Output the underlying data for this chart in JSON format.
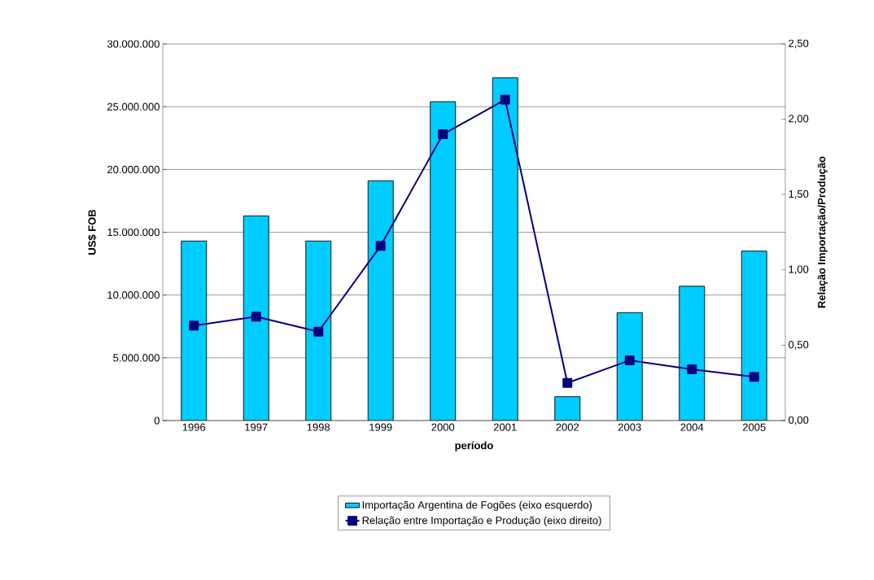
{
  "chart_data": {
    "type": "bar",
    "xlabel": "período",
    "ylabel": "US$ FOB",
    "y2label": "Relação Importação/Produção",
    "categories": [
      "1996",
      "1997",
      "1998",
      "1999",
      "2000",
      "2001",
      "2002",
      "2003",
      "2004",
      "2005"
    ],
    "series": [
      {
        "name": "Importação Argentina de Fogões (eixo esquerdo)",
        "color": "#00ccff",
        "values": [
          14300000,
          16300000,
          14300000,
          19100000,
          25400000,
          27300000,
          1900000,
          8600000,
          10700000,
          13500000
        ]
      },
      {
        "name": "Relação entre Importação e Produção (eixo direito)",
        "type": "line",
        "axis": "y2",
        "color": "#000080",
        "values": [
          0.63,
          0.69,
          0.59,
          1.16,
          1.9,
          2.13,
          0.25,
          0.4,
          0.34,
          0.29
        ]
      }
    ],
    "ylim": [
      0,
      30000000
    ],
    "yticks": [
      {
        "value": 0,
        "label": "0"
      },
      {
        "value": 5000000,
        "label": "5.000.000"
      },
      {
        "value": 10000000,
        "label": "10.000.000"
      },
      {
        "value": 15000000,
        "label": "15.000.000"
      },
      {
        "value": 20000000,
        "label": "20.000.000"
      },
      {
        "value": 25000000,
        "label": "25.000.000"
      },
      {
        "value": 30000000,
        "label": "30.000.000"
      }
    ],
    "y2lim": [
      0,
      2.5
    ],
    "y2ticks": [
      {
        "value": 0,
        "label": "0,00"
      },
      {
        "value": 0.5,
        "label": "0,50"
      },
      {
        "value": 1.0,
        "label": "1,00"
      },
      {
        "value": 1.5,
        "label": "1,50"
      },
      {
        "value": 2.0,
        "label": "2,00"
      },
      {
        "value": 2.5,
        "label": "2,50"
      }
    ],
    "grid": "y",
    "legend": "bottom",
    "marker": "square",
    "line_style": "solid"
  }
}
